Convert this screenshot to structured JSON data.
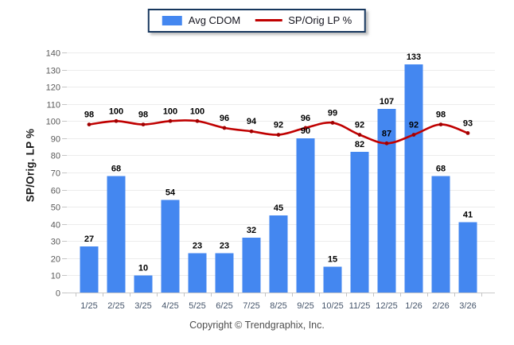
{
  "legend": {
    "items": [
      {
        "label": "Avg CDOM",
        "type": "bar"
      },
      {
        "label": "SP/Orig LP %",
        "type": "line"
      }
    ]
  },
  "footer": {
    "copyright": "Copyright © Trendgraphix, Inc."
  },
  "colors": {
    "bar": "#4487F0",
    "line": "#C00000",
    "line_marker": "#A00000",
    "grid": "#ececec",
    "axis_line": "#c9c9c9",
    "tick": "#c4c4c4",
    "y_tick_label": "#595959",
    "x_tick_label": "#44546A",
    "data_label": "#000000",
    "legend_border": "#17375E"
  },
  "chart_data": {
    "type": "bar+line",
    "title": "",
    "categories": [
      "1/25",
      "2/25",
      "3/25",
      "4/25",
      "5/25",
      "6/25",
      "7/25",
      "8/25",
      "9/25",
      "10/25",
      "11/25",
      "12/25",
      "1/26",
      "2/26",
      "3/26"
    ],
    "series": [
      {
        "name": "Avg CDOM",
        "type": "bar",
        "values": [
          27,
          68,
          10,
          54,
          23,
          23,
          32,
          45,
          90,
          15,
          82,
          107,
          133,
          68,
          41
        ]
      },
      {
        "name": "SP/Orig LP %",
        "type": "line",
        "values": [
          98,
          100,
          98,
          100,
          100,
          96,
          94,
          92,
          96,
          99,
          92,
          87,
          92,
          98,
          93
        ]
      }
    ],
    "xlabel": "",
    "ylabel": "SP/Orig. LP %",
    "ylim": [
      0,
      140
    ],
    "ytick_step": 10,
    "grid": "horizontal",
    "legend_position": "top-center",
    "data_labels": true
  }
}
